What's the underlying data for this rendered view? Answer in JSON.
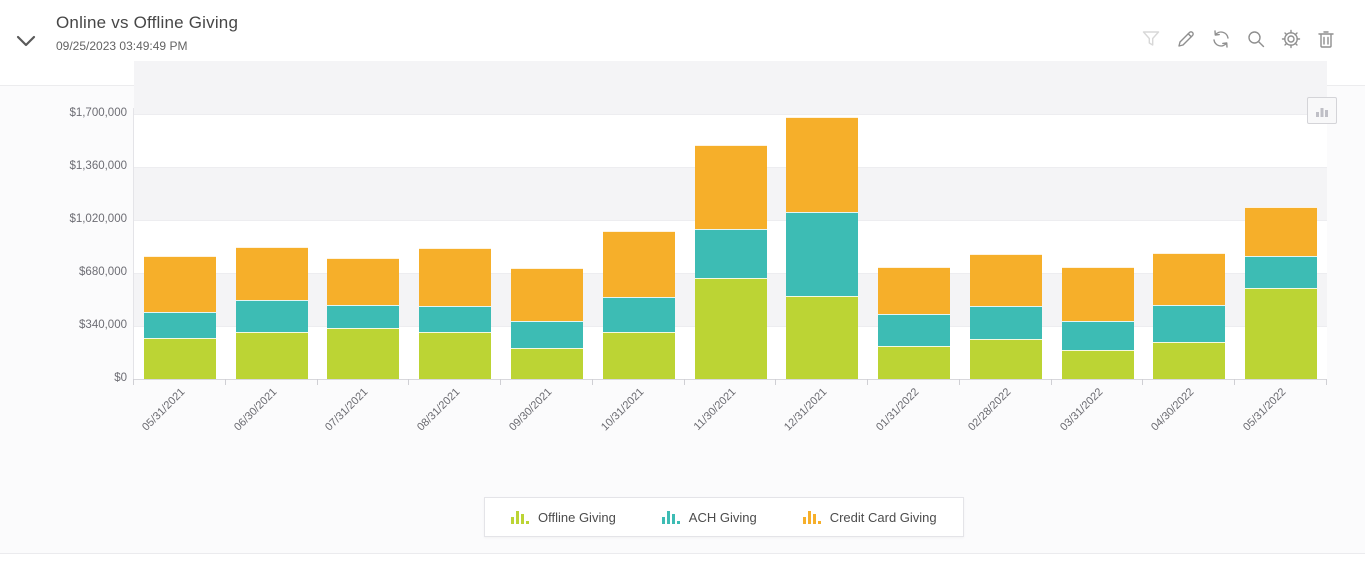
{
  "header": {
    "title": "Online vs Offline Giving",
    "timestamp": "09/25/2023 03:49:49 PM",
    "toolbar": [
      {
        "name": "filter-icon",
        "enabled": false
      },
      {
        "name": "edit-icon",
        "enabled": true
      },
      {
        "name": "refresh-icon",
        "enabled": true
      },
      {
        "name": "zoom-icon",
        "enabled": true
      },
      {
        "name": "settings-icon",
        "enabled": true
      },
      {
        "name": "delete-icon",
        "enabled": true
      }
    ]
  },
  "chart_data": {
    "type": "bar",
    "stacked": true,
    "title": "Online vs Offline Giving",
    "categories": [
      "05/31/2021",
      "06/30/2021",
      "07/31/2021",
      "08/31/2021",
      "09/30/2021",
      "10/31/2021",
      "11/30/2021",
      "12/31/2021",
      "01/31/2022",
      "02/28/2022",
      "03/31/2022",
      "04/30/2022",
      "05/31/2022"
    ],
    "series": [
      {
        "name": "Offline Giving",
        "color": "#bcd434",
        "values": [
          260000,
          300000,
          325000,
          300000,
          200000,
          300000,
          650000,
          530000,
          210000,
          255000,
          185000,
          235000,
          585000
        ]
      },
      {
        "name": "ACH Giving",
        "color": "#3dbcb4",
        "values": [
          170000,
          205000,
          150000,
          170000,
          175000,
          225000,
          310000,
          540000,
          205000,
          215000,
          185000,
          240000,
          205000
        ]
      },
      {
        "name": "Credit Card Giving",
        "color": "#f6af2a",
        "values": [
          360000,
          340000,
          300000,
          370000,
          340000,
          425000,
          540000,
          610000,
          305000,
          330000,
          350000,
          335000,
          315000
        ]
      }
    ],
    "xlabel": "",
    "ylabel": "",
    "ylim": [
      0,
      1700000
    ],
    "ytick_values": [
      0,
      340000,
      680000,
      1020000,
      1360000,
      1700000
    ],
    "ytick_labels": [
      "$0",
      "$340,000",
      "$680,000",
      "$1,020,000",
      "$1,360,000",
      "$1,700,000"
    ],
    "grid": "alternating-horizontal-bands",
    "band_color": "#f4f4f6",
    "legend_position": "bottom-center"
  }
}
